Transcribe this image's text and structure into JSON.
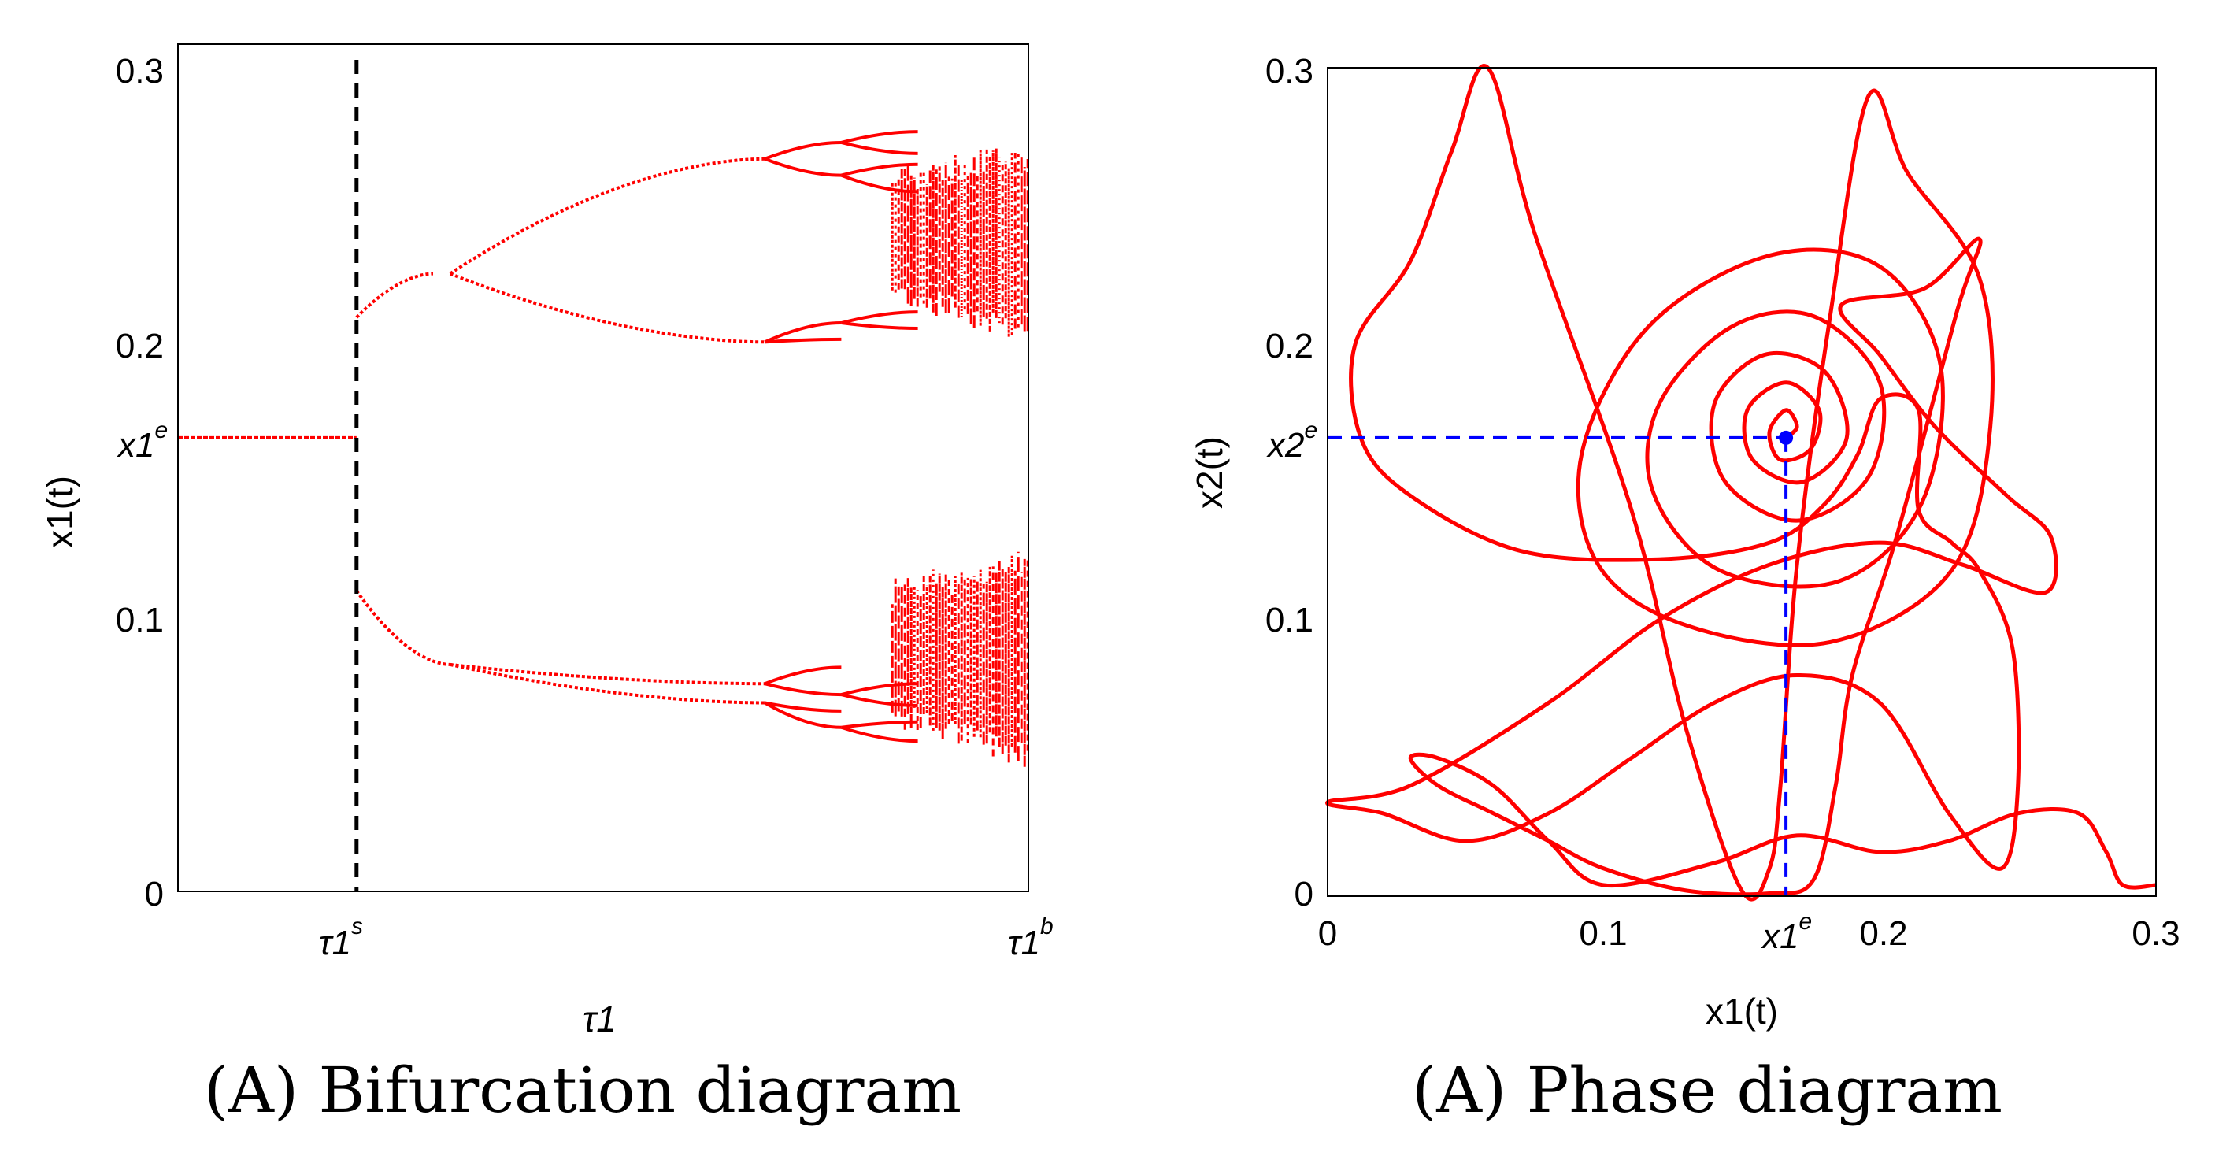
{
  "figure": {
    "left_caption": "(A) Bifurcation diagram",
    "right_caption": "(A) Phase diagram"
  },
  "colors": {
    "series": "#ff0000",
    "threshold_line": "#000000",
    "guide_line": "#0000ff",
    "equilibrium_point": "#0000ff",
    "axes": "#000000"
  },
  "chart_data": [
    {
      "type": "scatter",
      "title": "(A) Bifurcation diagram",
      "xlabel": "τ1",
      "ylabel": "x1(t)",
      "xlim": [
        0,
        1
      ],
      "ylim": [
        0,
        0.31
      ],
      "grid": false,
      "xticks": [
        {
          "value": 0.21,
          "label": "τ1",
          "sup": "s"
        },
        {
          "value": 1.0,
          "label": "τ1",
          "sup": "b"
        }
      ],
      "yticks": [
        {
          "value": 0,
          "label": "0"
        },
        {
          "value": 0.1,
          "label": "0.1"
        },
        {
          "value": 0.2,
          "label": "0.2"
        },
        {
          "value": 0.3,
          "label": "0.3"
        }
      ],
      "annotations": [
        {
          "text": "x1",
          "sup": "e",
          "y": 0.166,
          "position": "left-axis"
        }
      ],
      "threshold_line": {
        "x": 0.21,
        "style": "dashed"
      },
      "equilibrium": 0.166,
      "branches": [
        {
          "x0": 0.21,
          "x1": 0.3,
          "y0": 0.21,
          "y1": 0.226
        },
        {
          "x0": 0.21,
          "x1": 0.32,
          "y0": 0.11,
          "y1": 0.083
        },
        {
          "x0": 0.32,
          "x1": 0.69,
          "y0": 0.226,
          "y1": 0.268
        },
        {
          "x0": 0.32,
          "x1": 0.69,
          "y0": 0.226,
          "y1": 0.201
        },
        {
          "x0": 0.32,
          "x1": 0.69,
          "y0": 0.083,
          "y1": 0.076
        },
        {
          "x0": 0.32,
          "x1": 0.69,
          "y0": 0.083,
          "y1": 0.069
        }
      ],
      "chaotic_bands": [
        {
          "x0": 0.84,
          "x1": 1.0,
          "y_low": 0.2,
          "y_high": 0.275
        },
        {
          "x0": 0.84,
          "x1": 1.0,
          "y_low": 0.045,
          "y_high": 0.125
        }
      ]
    },
    {
      "type": "line",
      "title": "(A) Phase diagram",
      "xlabel": "x1(t)",
      "ylabel": "x2(t)",
      "xlim": [
        0,
        0.3
      ],
      "ylim": [
        0,
        0.3
      ],
      "grid": false,
      "xticks": [
        {
          "value": 0,
          "label": "0"
        },
        {
          "value": 0.1,
          "label": "0.1"
        },
        {
          "value": 0.2,
          "label": "0.2"
        },
        {
          "value": 0.3,
          "label": "0.3"
        }
      ],
      "yticks": [
        {
          "value": 0,
          "label": "0"
        },
        {
          "value": 0.1,
          "label": "0.1"
        },
        {
          "value": 0.2,
          "label": "0.2"
        },
        {
          "value": 0.3,
          "label": "0.3"
        }
      ],
      "annotations": [
        {
          "text": "x1",
          "sup": "e",
          "x": 0.166,
          "position": "bottom-axis"
        },
        {
          "text": "x2",
          "sup": "e",
          "y": 0.166,
          "position": "left-axis"
        }
      ],
      "equilibrium": {
        "x": 0.166,
        "y": 0.166
      },
      "trajectory": [
        [
          0.166,
          0.166
        ],
        [
          0.17,
          0.17
        ],
        [
          0.166,
          0.176
        ],
        [
          0.16,
          0.168
        ],
        [
          0.164,
          0.158
        ],
        [
          0.175,
          0.162
        ],
        [
          0.178,
          0.176
        ],
        [
          0.166,
          0.186
        ],
        [
          0.152,
          0.176
        ],
        [
          0.154,
          0.158
        ],
        [
          0.172,
          0.15
        ],
        [
          0.188,
          0.166
        ],
        [
          0.18,
          0.19
        ],
        [
          0.158,
          0.196
        ],
        [
          0.14,
          0.178
        ],
        [
          0.144,
          0.15
        ],
        [
          0.17,
          0.136
        ],
        [
          0.196,
          0.152
        ],
        [
          0.2,
          0.186
        ],
        [
          0.176,
          0.21
        ],
        [
          0.146,
          0.206
        ],
        [
          0.12,
          0.178
        ],
        [
          0.118,
          0.146
        ],
        [
          0.142,
          0.118
        ],
        [
          0.185,
          0.114
        ],
        [
          0.215,
          0.142
        ],
        [
          0.222,
          0.192
        ],
        [
          0.2,
          0.228
        ],
        [
          0.16,
          0.232
        ],
        [
          0.116,
          0.206
        ],
        [
          0.092,
          0.16
        ],
        [
          0.098,
          0.12
        ],
        [
          0.13,
          0.098
        ],
        [
          0.182,
          0.092
        ],
        [
          0.226,
          0.118
        ],
        [
          0.24,
          0.17
        ],
        [
          0.236,
          0.224
        ],
        [
          0.21,
          0.262
        ],
        [
          0.196,
          0.29
        ],
        [
          0.182,
          0.21
        ],
        [
          0.17,
          0.12
        ],
        [
          0.164,
          0.04
        ],
        [
          0.16,
          0.01
        ],
        [
          0.15,
          0.002
        ],
        [
          0.13,
          0.06
        ],
        [
          0.11,
          0.14
        ],
        [
          0.075,
          0.24
        ],
        [
          0.058,
          0.3
        ],
        [
          0.045,
          0.27
        ],
        [
          0.03,
          0.23
        ],
        [
          0.01,
          0.2
        ],
        [
          0.012,
          0.166
        ],
        [
          0.03,
          0.145
        ],
        [
          0.07,
          0.125
        ],
        [
          0.12,
          0.122
        ],
        [
          0.16,
          0.128
        ],
        [
          0.18,
          0.142
        ],
        [
          0.192,
          0.16
        ],
        [
          0.2,
          0.18
        ],
        [
          0.214,
          0.176
        ],
        [
          0.214,
          0.14
        ],
        [
          0.226,
          0.128
        ],
        [
          0.236,
          0.118
        ],
        [
          0.248,
          0.09
        ],
        [
          0.25,
          0.04
        ],
        [
          0.244,
          0.01
        ],
        [
          0.225,
          0.03
        ],
        [
          0.2,
          0.07
        ],
        [
          0.17,
          0.08
        ],
        [
          0.14,
          0.07
        ],
        [
          0.11,
          0.05
        ],
        [
          0.08,
          0.03
        ],
        [
          0.05,
          0.02
        ],
        [
          0.02,
          0.03
        ],
        [
          0.0,
          0.034
        ],
        [
          0.03,
          0.04
        ],
        [
          0.08,
          0.07
        ],
        [
          0.12,
          0.1
        ],
        [
          0.16,
          0.12
        ],
        [
          0.2,
          0.128
        ],
        [
          0.23,
          0.12
        ],
        [
          0.26,
          0.11
        ],
        [
          0.262,
          0.13
        ],
        [
          0.246,
          0.145
        ],
        [
          0.22,
          0.17
        ],
        [
          0.2,
          0.196
        ],
        [
          0.186,
          0.214
        ],
        [
          0.216,
          0.22
        ],
        [
          0.236,
          0.238
        ],
        [
          0.228,
          0.212
        ],
        [
          0.206,
          0.13
        ],
        [
          0.19,
          0.08
        ],
        [
          0.184,
          0.04
        ],
        [
          0.176,
          0.006
        ],
        [
          0.16,
          0.001
        ],
        [
          0.13,
          0.002
        ],
        [
          0.1,
          0.01
        ],
        [
          0.08,
          0.02
        ],
        [
          0.06,
          0.03
        ],
        [
          0.04,
          0.04
        ],
        [
          0.03,
          0.05
        ],
        [
          0.04,
          0.05
        ],
        [
          0.06,
          0.04
        ],
        [
          0.08,
          0.02
        ],
        [
          0.1,
          0.004
        ],
        [
          0.14,
          0.012
        ],
        [
          0.17,
          0.022
        ],
        [
          0.2,
          0.016
        ],
        [
          0.225,
          0.02
        ],
        [
          0.25,
          0.03
        ],
        [
          0.272,
          0.03
        ],
        [
          0.282,
          0.016
        ],
        [
          0.288,
          0.004
        ],
        [
          0.3,
          0.004
        ]
      ]
    }
  ]
}
